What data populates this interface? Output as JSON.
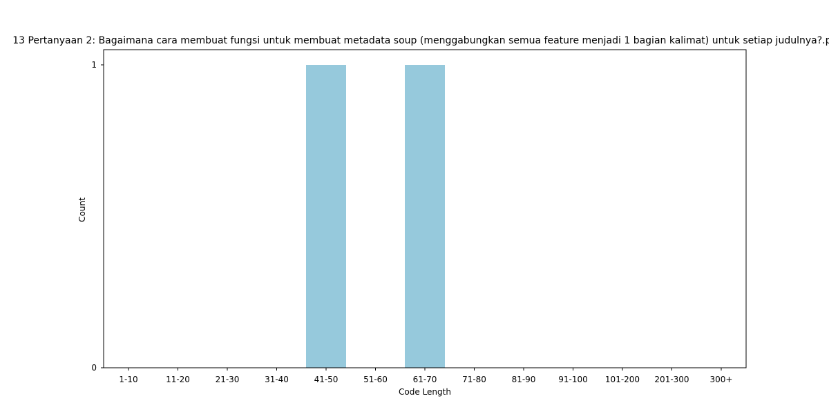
{
  "chart_data": {
    "type": "bar",
    "title": "13 Pertanyaan 2: Bagaimana cara membuat fungsi untuk membuat metadata soup (menggabungkan semua feature menjadi 1 bagian kalimat) untuk setiap judulnya?.py",
    "xlabel": "Code Length",
    "ylabel": "Count",
    "categories": [
      "1-10",
      "11-20",
      "21-30",
      "31-40",
      "41-50",
      "51-60",
      "61-70",
      "71-80",
      "81-90",
      "91-100",
      "101-200",
      "201-300",
      "300+"
    ],
    "values": [
      0,
      0,
      0,
      0,
      1,
      0,
      1,
      0,
      0,
      0,
      0,
      0,
      0
    ],
    "ylim": [
      0,
      1
    ],
    "yticks": [
      "0",
      "1"
    ],
    "bar_color": "#96c9dc",
    "grid": false,
    "legend": "none"
  }
}
